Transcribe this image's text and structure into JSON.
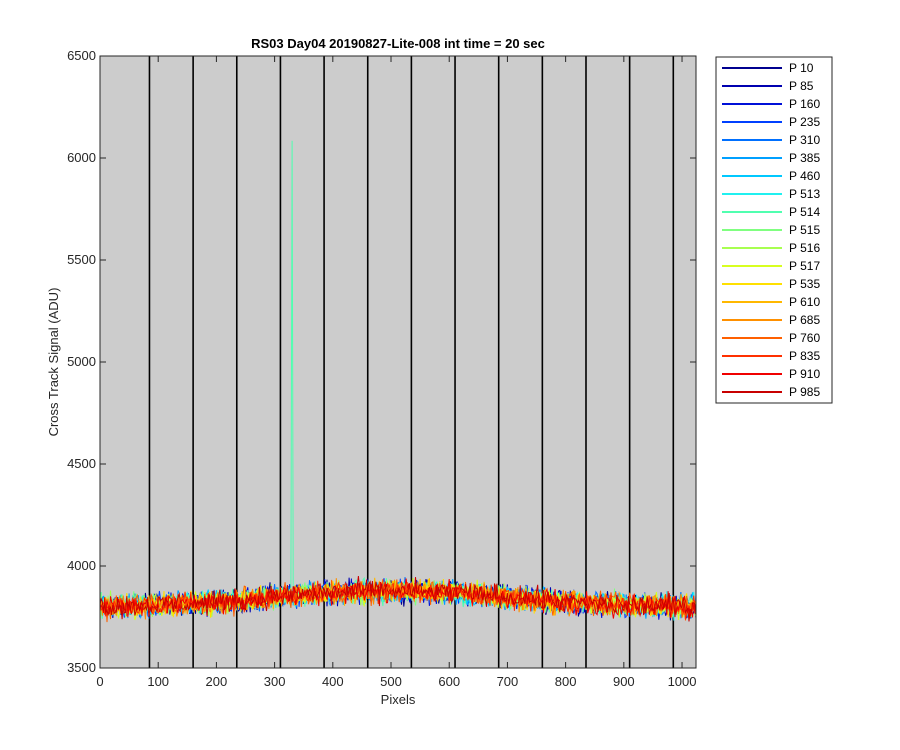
{
  "chart_data": {
    "type": "line",
    "title": "RS03 Day04 20190827-Lite-008 int time = 20 sec",
    "xlabel": "Pixels",
    "ylabel": "Cross Track Signal (ADU)",
    "xlim": [
      0,
      1024
    ],
    "ylim": [
      3500,
      6500
    ],
    "xticks": [
      0,
      100,
      200,
      300,
      400,
      500,
      600,
      700,
      800,
      900,
      1000
    ],
    "yticks": [
      3500,
      4000,
      4500,
      5000,
      5500,
      6000,
      6500
    ],
    "background_color": "#cccccc",
    "grid": false,
    "legend_position": "outside-top-right",
    "vertical_lines_x": [
      85,
      160,
      235,
      310,
      385,
      460,
      535,
      610,
      685,
      760,
      835,
      910,
      985
    ],
    "vertical_line_color": "#000000",
    "signal_profile": {
      "x": [
        0,
        100,
        200,
        300,
        400,
        500,
        600,
        700,
        800,
        900,
        1024
      ],
      "y": [
        3800,
        3810,
        3820,
        3850,
        3870,
        3880,
        3870,
        3850,
        3820,
        3810,
        3800
      ],
      "noise_amplitude": 60
    },
    "spike": {
      "series": "P 514",
      "x": 330,
      "peak": 6085,
      "base": 3900
    },
    "series": [
      {
        "name": "P 10",
        "color": "#00008f"
      },
      {
        "name": "P 85",
        "color": "#0000b0"
      },
      {
        "name": "P 160",
        "color": "#0010d8"
      },
      {
        "name": "P 235",
        "color": "#0040ff"
      },
      {
        "name": "P 310",
        "color": "#0070ff"
      },
      {
        "name": "P 385",
        "color": "#00a0ff"
      },
      {
        "name": "P 460",
        "color": "#00c8ff"
      },
      {
        "name": "P 513",
        "color": "#20f0f0"
      },
      {
        "name": "P 514",
        "color": "#50ffb0"
      },
      {
        "name": "P 515",
        "color": "#80ff80"
      },
      {
        "name": "P 516",
        "color": "#a8ff50"
      },
      {
        "name": "P 517",
        "color": "#d8ff20"
      },
      {
        "name": "P 535",
        "color": "#ffe000"
      },
      {
        "name": "P 610",
        "color": "#ffb800"
      },
      {
        "name": "P 685",
        "color": "#ff9000"
      },
      {
        "name": "P 760",
        "color": "#ff6000"
      },
      {
        "name": "P 835",
        "color": "#ff3000"
      },
      {
        "name": "P 910",
        "color": "#f00000"
      },
      {
        "name": "P 985",
        "color": "#c80000"
      }
    ]
  }
}
